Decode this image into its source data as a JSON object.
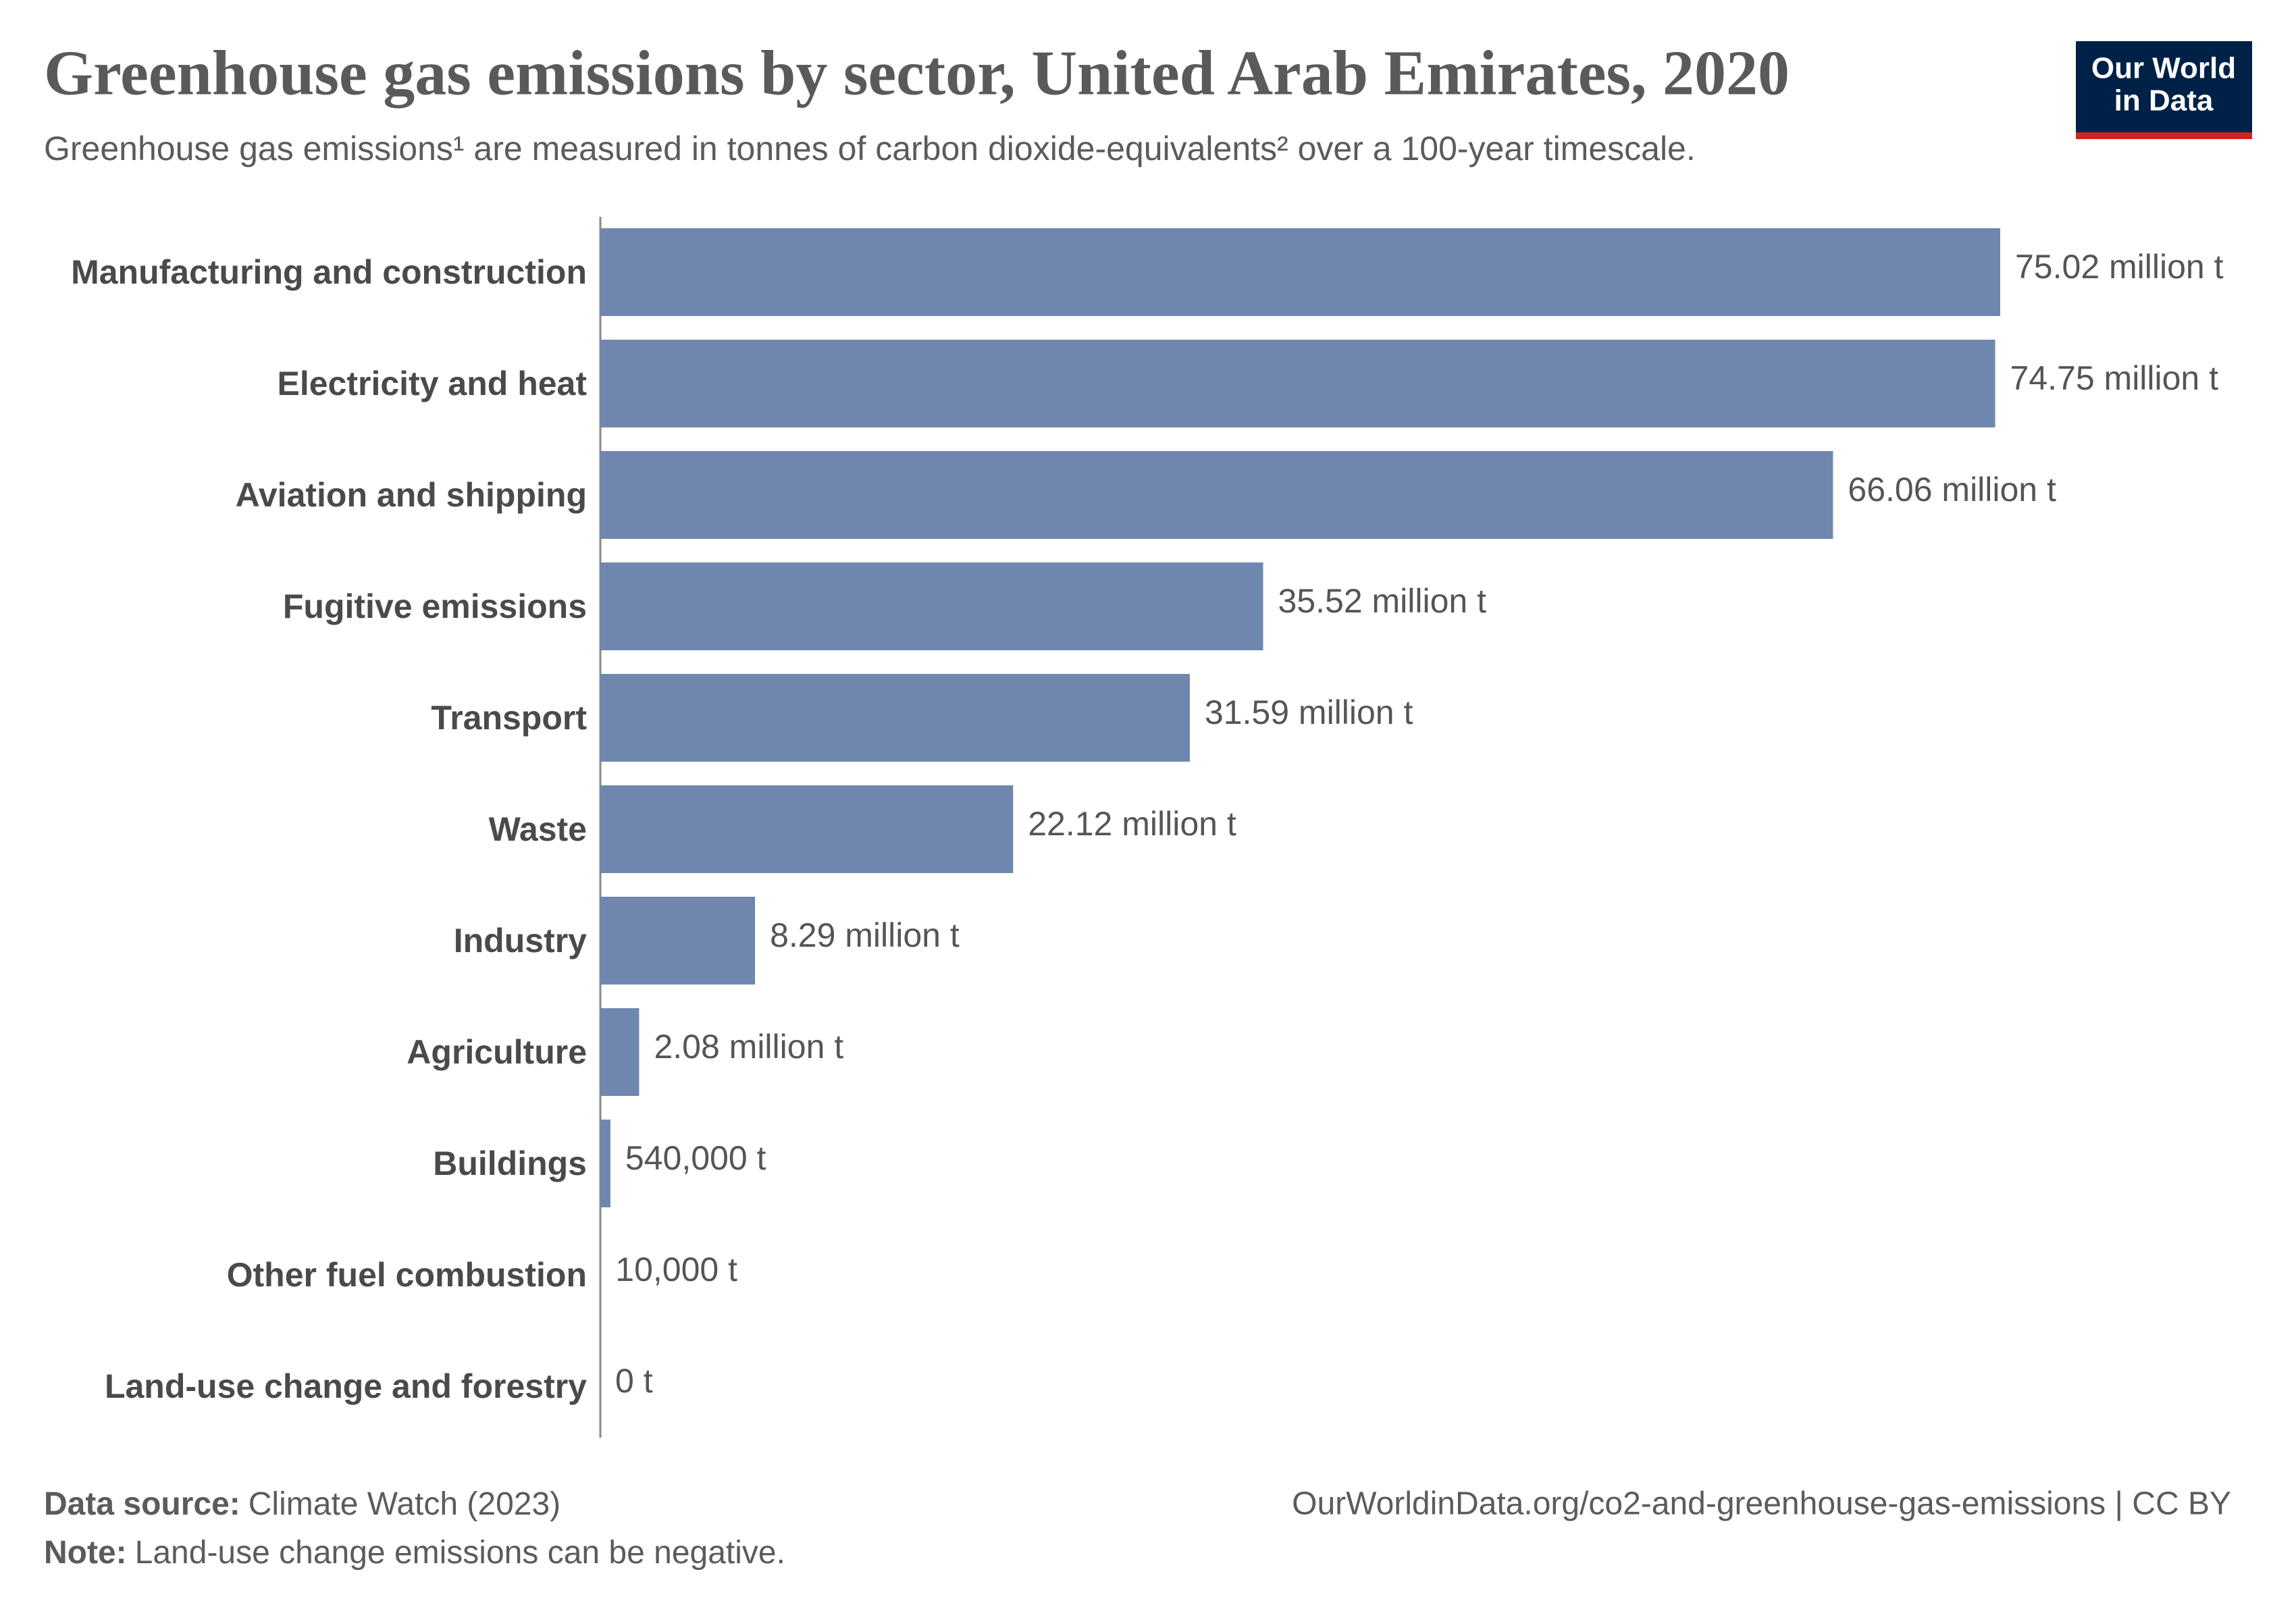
{
  "chart_data": {
    "type": "bar",
    "orientation": "horizontal",
    "title": "Greenhouse gas emissions by sector, United Arab Emirates, 2020",
    "subtitle": "Greenhouse gas emissions¹ are measured in tonnes of carbon dioxide-equivalents² over a 100-year timescale.",
    "categories": [
      "Manufacturing and construction",
      "Electricity and heat",
      "Aviation and shipping",
      "Fugitive emissions",
      "Transport",
      "Waste",
      "Industry",
      "Agriculture",
      "Buildings",
      "Other fuel combustion",
      "Land-use change and forestry"
    ],
    "values": [
      75020000,
      74750000,
      66060000,
      35520000,
      31590000,
      22120000,
      8290000,
      2080000,
      540000,
      10000,
      0
    ],
    "value_labels": [
      "75.02 million t",
      "74.75 million t",
      "66.06 million t",
      "35.52 million t",
      "31.59 million t",
      "22.12 million t",
      "8.29 million t",
      "2.08 million t",
      "540,000 t",
      "10,000 t",
      "0 t"
    ],
    "color": "#6f87ae"
  },
  "footer": {
    "source_label": "Data source:",
    "source": "Climate Watch (2023)",
    "note_label": "Note:",
    "note": "Land-use change emissions can be negative.",
    "url": "OurWorldinData.org/co2-and-greenhouse-gas-emissions | CC BY"
  },
  "logo": [
    "Our World",
    "in Data"
  ]
}
